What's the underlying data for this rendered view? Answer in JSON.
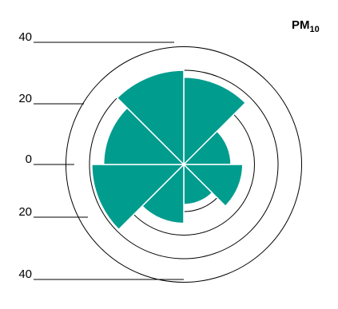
{
  "chart_data": {
    "type": "polar-bar",
    "title": "PM",
    "title_subscript": "10",
    "radial_tick_labels": [
      "40",
      "20",
      "0",
      "20",
      "40"
    ],
    "radial_rings": [
      20,
      30,
      40,
      50
    ],
    "bar_color": "#009c8e",
    "sectors": [
      {
        "direction_deg": 22.5,
        "value": 37
      },
      {
        "direction_deg": 67.5,
        "value": 20
      },
      {
        "direction_deg": 112.5,
        "value": 25
      },
      {
        "direction_deg": 157.5,
        "value": 17
      },
      {
        "direction_deg": 202.5,
        "value": 25
      },
      {
        "direction_deg": 247.5,
        "value": 39
      },
      {
        "direction_deg": 292.5,
        "value": 34
      },
      {
        "direction_deg": 337.5,
        "value": 40
      }
    ]
  }
}
